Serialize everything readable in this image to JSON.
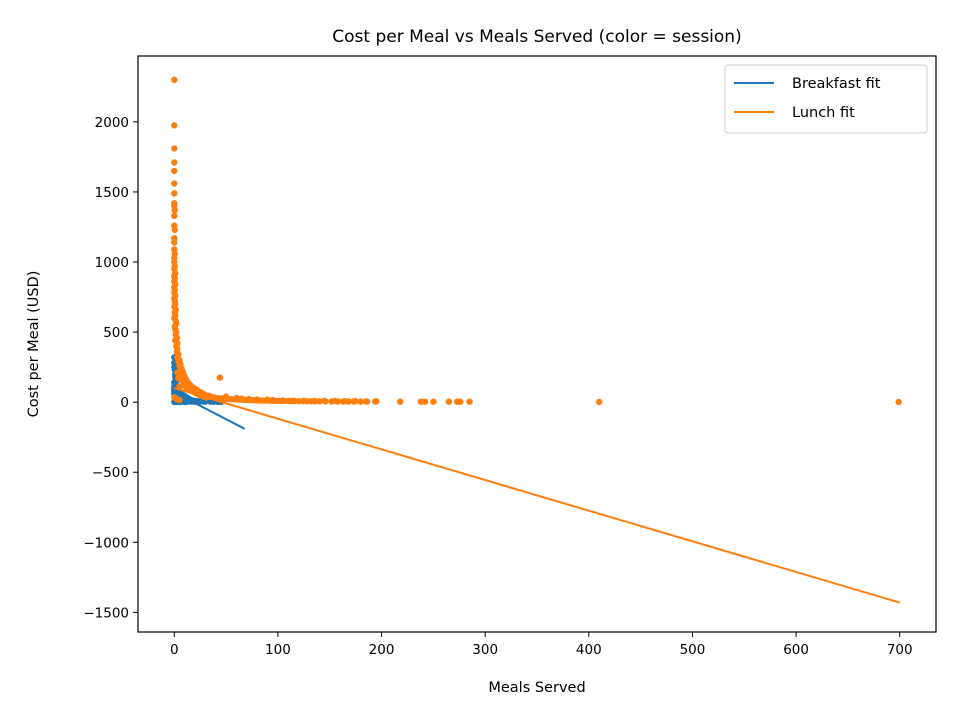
{
  "chart_data": {
    "type": "scatter",
    "title": "Cost per Meal vs Meals Served (color = session)",
    "xlabel": "Meals Served",
    "ylabel": "Cost per Meal (USD)",
    "xlim": [
      -35,
      735
    ],
    "ylim": [
      -1640,
      2470
    ],
    "xticks": [
      0,
      100,
      200,
      300,
      400,
      500,
      600,
      700
    ],
    "yticks": [
      -1500,
      -1000,
      -500,
      0,
      500,
      1000,
      1500,
      2000
    ],
    "grid": false,
    "legend": {
      "placement": "top-right",
      "entries": [
        {
          "label": "Breakfast fit",
          "color": "#1f77b4"
        },
        {
          "label": "Lunch fit",
          "color": "#ff7f0e"
        }
      ]
    },
    "series": [
      {
        "key": "breakfast",
        "color": "#1f77b4",
        "points": [
          [
            0,
            320
          ],
          [
            0,
            280
          ],
          [
            0,
            250
          ],
          [
            0.5,
            230
          ],
          [
            1,
            200
          ],
          [
            1,
            180
          ],
          [
            1.5,
            160
          ],
          [
            2,
            150
          ],
          [
            0,
            140
          ],
          [
            0.5,
            130
          ],
          [
            1,
            120
          ],
          [
            2,
            115
          ],
          [
            0,
            110
          ],
          [
            1,
            105
          ],
          [
            3,
            100
          ],
          [
            2,
            95
          ],
          [
            0,
            90
          ],
          [
            1,
            88
          ],
          [
            4,
            85
          ],
          [
            2,
            82
          ],
          [
            3,
            80
          ],
          [
            5,
            76
          ],
          [
            0,
            75
          ],
          [
            1,
            72
          ],
          [
            6,
            70
          ],
          [
            2,
            68
          ],
          [
            3,
            66
          ],
          [
            4,
            64
          ],
          [
            7,
            60
          ],
          [
            5,
            58
          ],
          [
            1,
            56
          ],
          [
            2,
            54
          ],
          [
            8,
            52
          ],
          [
            3,
            50
          ],
          [
            6,
            48
          ],
          [
            9,
            46
          ],
          [
            10,
            44
          ],
          [
            4,
            42
          ],
          [
            2,
            40
          ],
          [
            7,
            38
          ],
          [
            11,
            36
          ],
          [
            12,
            34
          ],
          [
            5,
            32
          ],
          [
            8,
            30
          ],
          [
            1,
            28
          ],
          [
            13,
            26
          ],
          [
            14,
            24
          ],
          [
            3,
            22
          ],
          [
            9,
            20
          ],
          [
            15,
            18
          ],
          [
            6,
            16
          ],
          [
            16,
            15
          ],
          [
            2,
            14
          ],
          [
            10,
            12
          ],
          [
            18,
            11
          ],
          [
            4,
            10
          ],
          [
            20,
            9
          ],
          [
            12,
            8
          ],
          [
            22,
            7
          ],
          [
            7,
            6
          ],
          [
            25,
            6
          ],
          [
            14,
            5
          ],
          [
            28,
            5
          ],
          [
            3,
            4
          ],
          [
            30,
            4
          ],
          [
            17,
            4
          ],
          [
            35,
            3
          ],
          [
            8,
            3
          ],
          [
            38,
            3
          ],
          [
            20,
            3
          ],
          [
            0,
            2
          ],
          [
            1,
            2
          ],
          [
            2,
            2
          ],
          [
            5,
            1
          ],
          [
            11,
            1
          ],
          [
            42,
            2
          ],
          [
            45,
            2
          ],
          [
            24,
            2
          ],
          [
            0,
            60
          ],
          [
            1,
            42
          ],
          [
            3,
            33
          ]
        ],
        "fit": [
          [
            0,
            70
          ],
          [
            68,
            -190
          ]
        ]
      },
      {
        "key": "lunch",
        "color": "#ff7f0e",
        "points": [
          [
            0,
            2300
          ],
          [
            0,
            1975
          ],
          [
            0,
            1810
          ],
          [
            0,
            1710
          ],
          [
            0,
            1650
          ],
          [
            0,
            1560
          ],
          [
            0,
            1490
          ],
          [
            0,
            1420
          ],
          [
            0,
            1400
          ],
          [
            0.5,
            1370
          ],
          [
            0,
            1330
          ],
          [
            0,
            1260
          ],
          [
            0.5,
            1230
          ],
          [
            0,
            1170
          ],
          [
            0,
            1140
          ],
          [
            0,
            1090
          ],
          [
            0.5,
            1060
          ],
          [
            0,
            1030
          ],
          [
            0,
            1000
          ],
          [
            0.5,
            970
          ],
          [
            0,
            950
          ],
          [
            1,
            920
          ],
          [
            0,
            900
          ],
          [
            0.5,
            880
          ],
          [
            0,
            860
          ],
          [
            1,
            840
          ],
          [
            0,
            820
          ],
          [
            0.5,
            800
          ],
          [
            0,
            780
          ],
          [
            1,
            760
          ],
          [
            0,
            740
          ],
          [
            0.5,
            720
          ],
          [
            1,
            700
          ],
          [
            0,
            680
          ],
          [
            1.5,
            660
          ],
          [
            0.5,
            640
          ],
          [
            1,
            620
          ],
          [
            0,
            600
          ],
          [
            1.5,
            580
          ],
          [
            2,
            560
          ],
          [
            0.5,
            540
          ],
          [
            1,
            520
          ],
          [
            2,
            500
          ],
          [
            1.5,
            480
          ],
          [
            2.5,
            460
          ],
          [
            1,
            440
          ],
          [
            3,
            420
          ],
          [
            2,
            400
          ],
          [
            3,
            380
          ],
          [
            2.5,
            360
          ],
          [
            4,
            340
          ],
          [
            3,
            320
          ],
          [
            5,
            300
          ],
          [
            4,
            290
          ],
          [
            6,
            270
          ],
          [
            5,
            260
          ],
          [
            7,
            240
          ],
          [
            6,
            230
          ],
          [
            8,
            220
          ],
          [
            3,
            210
          ],
          [
            9,
            200
          ],
          [
            7,
            190
          ],
          [
            10,
            180
          ],
          [
            4,
            170
          ],
          [
            11,
            165
          ],
          [
            44,
            175
          ],
          [
            12,
            155
          ],
          [
            8,
            150
          ],
          [
            13,
            140
          ],
          [
            9,
            135
          ],
          [
            15,
            125
          ],
          [
            10,
            120
          ],
          [
            16,
            115
          ],
          [
            5,
            110
          ],
          [
            18,
            105
          ],
          [
            12,
            100
          ],
          [
            20,
            95
          ],
          [
            14,
            90
          ],
          [
            22,
            85
          ],
          [
            17,
            80
          ],
          [
            24,
            75
          ],
          [
            19,
            72
          ],
          [
            26,
            68
          ],
          [
            21,
            65
          ],
          [
            28,
            60
          ],
          [
            23,
            56
          ],
          [
            30,
            52
          ],
          [
            25,
            50
          ],
          [
            33,
            46
          ],
          [
            27,
            44
          ],
          [
            35,
            40
          ],
          [
            29,
            38
          ],
          [
            38,
            35
          ],
          [
            31,
            33
          ],
          [
            40,
            30
          ],
          [
            43,
            28
          ],
          [
            46,
            26
          ],
          [
            49,
            24
          ],
          [
            52,
            22
          ],
          [
            55,
            21
          ],
          [
            58,
            20
          ],
          [
            61,
            19
          ],
          [
            64,
            18
          ],
          [
            67,
            17
          ],
          [
            70,
            16
          ],
          [
            73,
            15
          ],
          [
            76,
            14
          ],
          [
            79,
            13
          ],
          [
            82,
            12
          ],
          [
            85,
            12
          ],
          [
            88,
            11
          ],
          [
            91,
            11
          ],
          [
            94,
            10
          ],
          [
            97,
            10
          ],
          [
            100,
            9
          ],
          [
            103,
            9
          ],
          [
            106,
            9
          ],
          [
            110,
            8
          ],
          [
            113,
            8
          ],
          [
            116,
            8
          ],
          [
            120,
            7
          ],
          [
            124,
            7
          ],
          [
            128,
            7
          ],
          [
            132,
            6
          ],
          [
            136,
            6
          ],
          [
            140,
            6
          ],
          [
            146,
            6
          ],
          [
            152,
            5
          ],
          [
            158,
            5
          ],
          [
            163,
            5
          ],
          [
            168,
            5
          ],
          [
            173,
            5
          ],
          [
            180,
            4
          ],
          [
            186,
            4
          ],
          [
            194,
            4
          ],
          [
            218,
            3
          ],
          [
            238,
            3
          ],
          [
            242,
            3
          ],
          [
            250,
            3
          ],
          [
            265,
            3
          ],
          [
            273,
            3
          ],
          [
            276,
            3
          ],
          [
            285,
            3
          ],
          [
            410,
            2
          ],
          [
            699,
            1
          ],
          [
            0,
            35
          ],
          [
            1,
            30
          ],
          [
            2,
            25
          ],
          [
            3,
            20
          ],
          [
            5,
            15
          ],
          [
            60,
            30
          ],
          [
            50,
            40
          ],
          [
            65,
            25
          ],
          [
            72,
            22
          ],
          [
            80,
            20
          ],
          [
            90,
            18
          ],
          [
            95,
            15
          ],
          [
            105,
            12
          ],
          [
            115,
            10
          ],
          [
            125,
            10
          ],
          [
            135,
            9
          ],
          [
            145,
            8
          ],
          [
            155,
            8
          ],
          [
            165,
            7
          ],
          [
            175,
            7
          ],
          [
            185,
            6
          ],
          [
            195,
            6
          ]
        ],
        "fit": [
          [
            0,
            100
          ],
          [
            700,
            -1430
          ]
        ]
      }
    ]
  }
}
